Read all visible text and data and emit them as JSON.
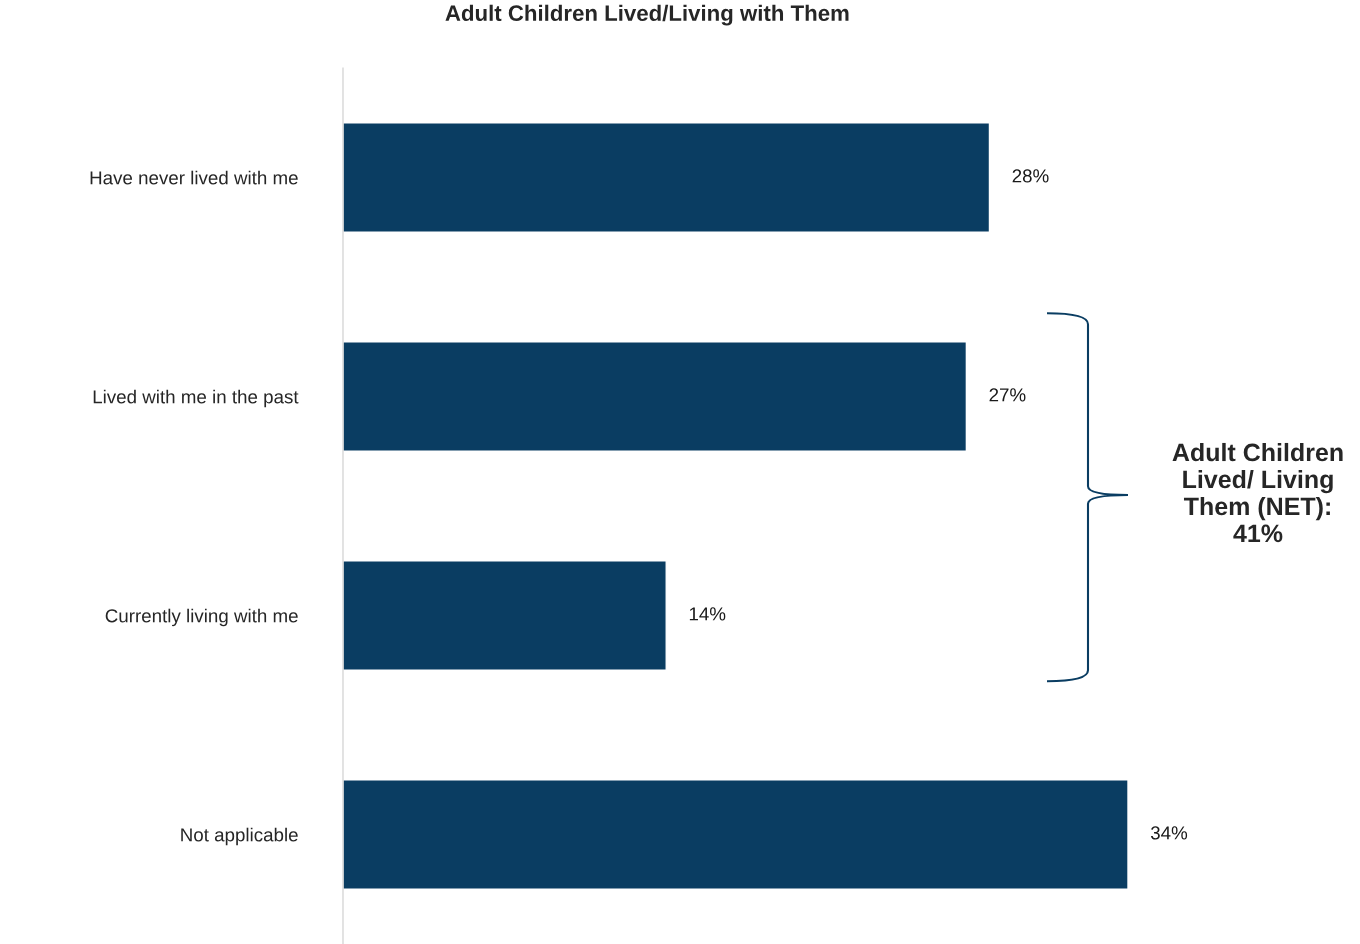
{
  "chart_data": {
    "type": "bar",
    "orientation": "horizontal",
    "title": "Adult Children Lived/Living with Them",
    "categories": [
      "Have never lived with me",
      "Lived with me in the past",
      "Currently living with me",
      "Not applicable"
    ],
    "values": [
      28,
      27,
      14,
      34
    ],
    "color": "#0a3d62",
    "value_labels": [
      "28%",
      "27%",
      "14%",
      "34%"
    ],
    "tick_labels": "y",
    "grid": false,
    "legend": false,
    "annotations": [
      "Adult Children Lived/ Living Them (NET): 41%"
    ]
  }
}
